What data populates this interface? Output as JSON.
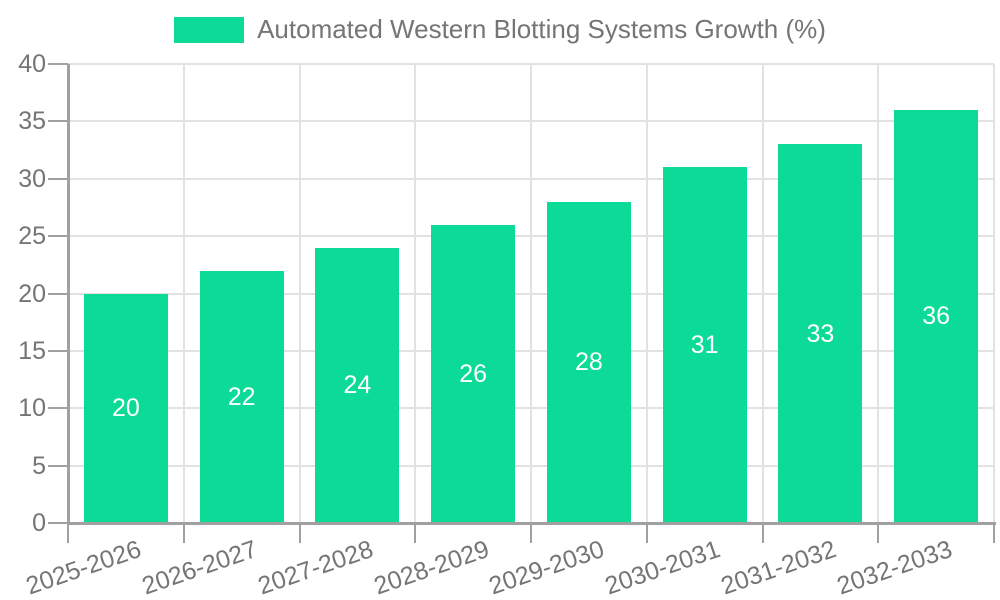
{
  "legend": {
    "label": "Automated Western Blotting Systems Growth (%)"
  },
  "colors": {
    "bar": "#0bdb96",
    "bar_label_text": "#ffffff",
    "axis_text": "#757575",
    "grid_line": "#e2e2e2",
    "axis_line": "#a0a0a0",
    "background": "#ffffff"
  },
  "chart_data": {
    "type": "bar",
    "title": "",
    "categories": [
      "2025-2026",
      "2026-2027",
      "2027-2028",
      "2028-2029",
      "2029-2030",
      "2030-2031",
      "2031-2032",
      "2032-2033"
    ],
    "series": [
      {
        "name": "Automated Western Blotting Systems Growth (%)",
        "values": [
          20,
          22,
          24,
          26,
          28,
          31,
          33,
          36
        ]
      }
    ],
    "xlabel": "",
    "ylabel": "",
    "ylim": [
      0,
      40
    ],
    "yticks": [
      0,
      5,
      10,
      15,
      20,
      25,
      30,
      35,
      40
    ],
    "grid": true,
    "legend_position": "top-center",
    "bar_labels_shown": true,
    "bar_label_position": "center-of-bar"
  }
}
